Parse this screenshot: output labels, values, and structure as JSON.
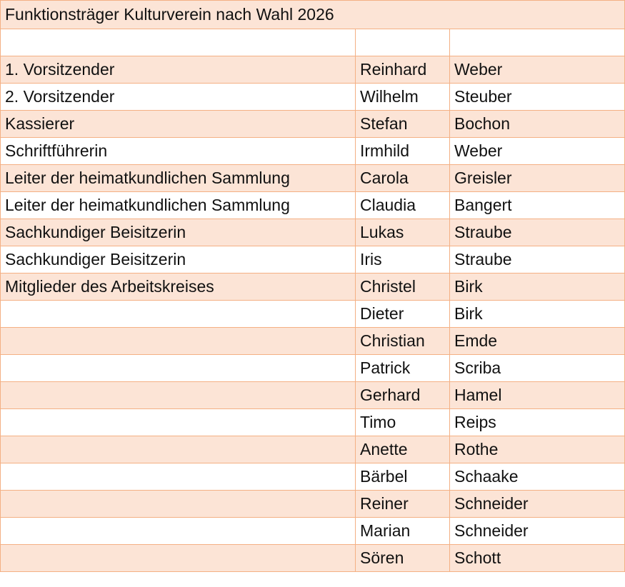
{
  "table": {
    "title": "Funktionsträger Kulturverein nach Wahl 2026",
    "rows": [
      [
        null,
        null,
        null
      ],
      [
        "1. Vorsitzender",
        "Reinhard",
        "Weber"
      ],
      [
        "2. Vorsitzender",
        "Wilhelm",
        "Steuber"
      ],
      [
        "Kassierer",
        "Stefan",
        "Bochon"
      ],
      [
        "Schriftführerin",
        "Irmhild",
        "Weber"
      ],
      [
        "Leiter der heimatkundlichen Sammlung",
        "Carola",
        "Greisler"
      ],
      [
        "Leiter der heimatkundlichen Sammlung",
        "Claudia",
        "Bangert"
      ],
      [
        "Sachkundiger Beisitzerin",
        "Lukas",
        "Straube"
      ],
      [
        "Sachkundiger Beisitzerin",
        "Iris",
        "Straube"
      ],
      [
        "Mitglieder des Arbeitskreises",
        "Christel",
        "Birk"
      ],
      [
        null,
        "Dieter",
        "Birk"
      ],
      [
        null,
        "Christian",
        "Emde"
      ],
      [
        null,
        "Patrick",
        "Scriba"
      ],
      [
        null,
        "Gerhard",
        "Hamel"
      ],
      [
        null,
        "Timo",
        "Reips"
      ],
      [
        null,
        "Anette",
        "Rothe"
      ],
      [
        null,
        "Bärbel",
        "Schaake"
      ],
      [
        null,
        "Reiner",
        "Schneider"
      ],
      [
        null,
        "Marian",
        "Schneider"
      ],
      [
        null,
        "Sören",
        "Schott"
      ]
    ]
  }
}
